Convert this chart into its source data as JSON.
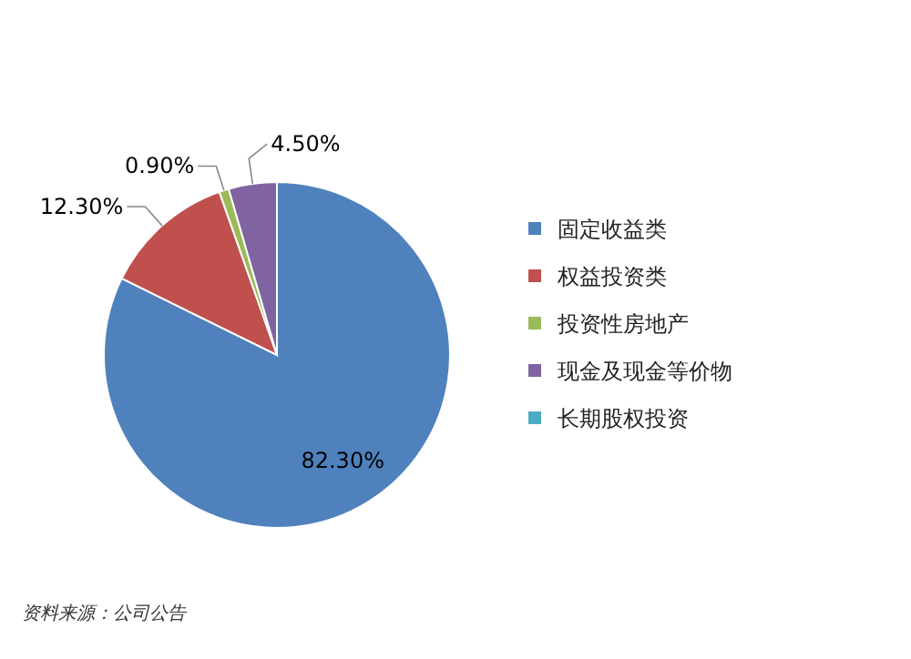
{
  "chart_data": {
    "type": "pie",
    "categories": [
      "固定收益类",
      "权益投资类",
      "投资性房地产",
      "现金及现金等价物",
      "长期股权投资"
    ],
    "values": [
      82.3,
      12.3,
      0.9,
      4.5,
      0
    ],
    "value_labels": [
      "82.30%",
      "12.30%",
      "0.90%",
      "4.50%",
      null
    ],
    "colors": [
      "#4f81bd",
      "#c0504d",
      "#9bbb59",
      "#8064a2",
      "#4bacc6"
    ],
    "legend": "right",
    "annotations": [
      "资料来源：公司公告"
    ]
  }
}
